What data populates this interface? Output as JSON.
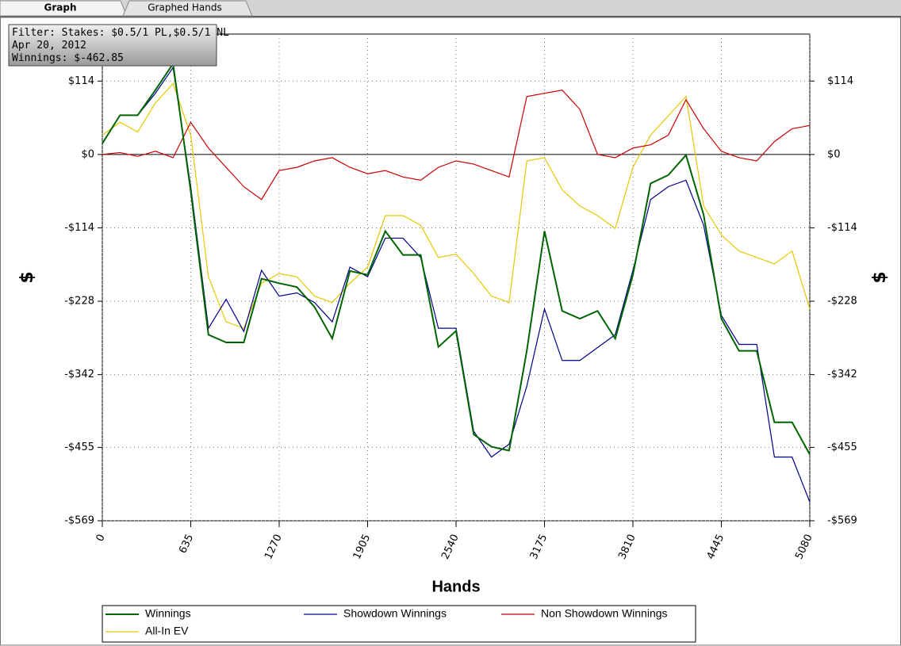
{
  "tabs": [
    "Graph",
    "Graphed Hands"
  ],
  "filter": [
    "Filter: Stakes: $0.5/1 PL,$0.5/1 NL",
    "Apr 20, 2012",
    "Winnings: $-462.85"
  ],
  "chart_data": {
    "type": "line",
    "xlabel": "Hands",
    "ylabel": "$",
    "xlim": [
      0,
      5080
    ],
    "xticks": [
      0,
      635,
      1270,
      1905,
      2540,
      3175,
      3810,
      4445,
      5080
    ],
    "ylim": [
      -569,
      187
    ],
    "yticks": [
      {
        "value": -569,
        "label": "-$569"
      },
      {
        "value": -455,
        "label": "-$455"
      },
      {
        "value": -342,
        "label": "-$342"
      },
      {
        "value": -228,
        "label": "-$228"
      },
      {
        "value": -114,
        "label": "-$114"
      },
      {
        "value": 0,
        "label": "$0"
      },
      {
        "value": 114,
        "label": "$114"
      }
    ],
    "grid": true,
    "x": [
      0,
      127,
      254,
      381,
      508,
      635,
      762,
      889,
      1016,
      1143,
      1270,
      1397,
      1524,
      1651,
      1778,
      1905,
      2032,
      2159,
      2286,
      2413,
      2540,
      2667,
      2794,
      2921,
      3048,
      3175,
      3302,
      3429,
      3556,
      3683,
      3810,
      3937,
      4064,
      4191,
      4318,
      4445,
      4572,
      4699,
      4826,
      4953,
      5080
    ],
    "series": [
      {
        "name": "Winnings",
        "color": "#006400",
        "values": [
          17,
          61,
          61,
          100,
          141,
          -57,
          -280,
          -292,
          -292,
          -193,
          -200,
          -206,
          -237,
          -286,
          -181,
          -187,
          -119,
          -156,
          -156,
          -299,
          -274,
          -435,
          -454,
          -460,
          -305,
          -119,
          -243,
          -255,
          -243,
          -286,
          -187,
          -45,
          -32,
          -1,
          -94,
          -255,
          -305,
          -305,
          -416,
          -416,
          -466
        ]
      },
      {
        "name": "Showdown Winnings",
        "color": "#00008b",
        "values": [
          17,
          61,
          61,
          95,
          135,
          -50,
          -270,
          -225,
          -275,
          -180,
          -220,
          -215,
          -230,
          -260,
          -175,
          -190,
          -130,
          -130,
          -160,
          -270,
          -270,
          -430,
          -470,
          -450,
          -360,
          -240,
          -320,
          -320,
          -300,
          -280,
          -180,
          -70,
          -50,
          -40,
          -110,
          -250,
          -295,
          -295,
          -470,
          -470,
          -540
        ]
      },
      {
        "name": "Non Showdown Winnings",
        "color": "#cc0000",
        "values": [
          0,
          3,
          -3,
          5,
          -5,
          50,
          10,
          -20,
          -50,
          -70,
          -25,
          -20,
          -10,
          -5,
          -20,
          -30,
          -25,
          -35,
          -40,
          -20,
          -10,
          -15,
          -25,
          -35,
          90,
          95,
          100,
          70,
          0,
          -5,
          10,
          15,
          30,
          85,
          40,
          5,
          -5,
          -10,
          20,
          40,
          45
        ]
      },
      {
        "name": "All-In EV",
        "color": "#e6c800",
        "values": [
          30,
          50,
          35,
          80,
          110,
          30,
          -190,
          -260,
          -270,
          -200,
          -185,
          -190,
          -220,
          -230,
          -200,
          -175,
          -95,
          -95,
          -110,
          -160,
          -155,
          -185,
          -220,
          -230,
          -10,
          -5,
          -55,
          -80,
          -95,
          -115,
          -20,
          30,
          60,
          90,
          -80,
          -125,
          -150,
          -160,
          -170,
          -150,
          -240
        ]
      }
    ]
  }
}
